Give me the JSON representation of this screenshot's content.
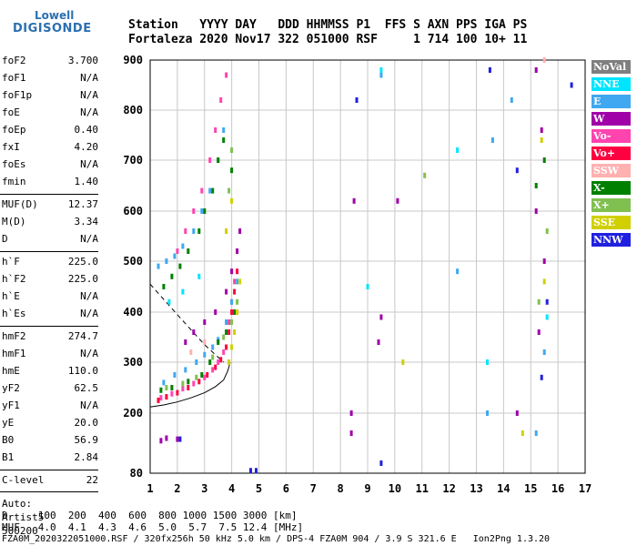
{
  "logo": {
    "line1": "Lowell",
    "line2": "DIGISONDE"
  },
  "header": {
    "line1": "Station   YYYY DAY   DDD HHMMSS P1  FFS S AXN PPS IGA PS",
    "line2": "Fortaleza 2020 Nov17 322 051000 RSF     1 714 100 10+ 11"
  },
  "params": [
    {
      "k": "foF2",
      "v": "3.700"
    },
    {
      "k": "foF1",
      "v": "N/A"
    },
    {
      "k": "foF1p",
      "v": "N/A"
    },
    {
      "k": "foE",
      "v": "N/A"
    },
    {
      "k": "foEp",
      "v": "0.40"
    },
    {
      "k": "fxI",
      "v": "4.20"
    },
    {
      "k": "foEs",
      "v": "N/A"
    },
    {
      "k": "fmin",
      "v": "1.40"
    },
    {
      "k": "MUF(D)",
      "v": "12.37"
    },
    {
      "k": "M(D)",
      "v": "3.34"
    },
    {
      "k": "D",
      "v": "N/A"
    },
    {
      "k": "h`F",
      "v": "225.0"
    },
    {
      "k": "h`F2",
      "v": "225.0"
    },
    {
      "k": "h`E",
      "v": "N/A"
    },
    {
      "k": "h`Es",
      "v": "N/A"
    },
    {
      "k": "hmF2",
      "v": "274.7"
    },
    {
      "k": "hmF1",
      "v": "N/A"
    },
    {
      "k": "hmE",
      "v": "110.0"
    },
    {
      "k": "yF2",
      "v": "62.5"
    },
    {
      "k": "yF1",
      "v": "N/A"
    },
    {
      "k": "yE",
      "v": "20.0"
    },
    {
      "k": "B0",
      "v": "56.9"
    },
    {
      "k": "B1",
      "v": "2.84"
    },
    {
      "k": "C-level",
      "v": "22"
    }
  ],
  "auto": {
    "l1": "Auto:",
    "l2": "Artist5",
    "l3": "500200"
  },
  "legend": [
    {
      "label": "NoVal",
      "color": "#7f7f7f"
    },
    {
      "label": "NNE",
      "color": "#00e5ff"
    },
    {
      "label": "E",
      "color": "#40a8f0"
    },
    {
      "label": "W",
      "color": "#a000a8"
    },
    {
      "label": "Vo-",
      "color": "#ff44b0"
    },
    {
      "label": "Vo+",
      "color": "#ff0040"
    },
    {
      "label": "SSW",
      "color": "#ffb0b0"
    },
    {
      "label": "X-",
      "color": "#008000"
    },
    {
      "label": "X+",
      "color": "#80c050"
    },
    {
      "label": "SSE",
      "color": "#d0d000"
    },
    {
      "label": "NNW",
      "color": "#2020e0"
    }
  ],
  "footer": {
    "l1": "D     100  200  400  600  800 1000 1500 3000 [km]",
    "l2": "MUF   4.0  4.1  4.3  4.6  5.0  5.7  7.5 12.4 [MHz]",
    "l3": "FZA0M_2020322051000.RSF / 320fx256h 50 kHz 5.0 km / DPS-4 FZA0M 904 / 3.9 S 321.6 E   Ion2Png 1.3.20"
  },
  "chart_data": {
    "type": "scatter",
    "xlim": [
      1,
      17
    ],
    "ylim": [
      80,
      900
    ],
    "xticks": [
      "1",
      "2",
      "3",
      "4",
      "5",
      "6",
      "7",
      "8",
      "9",
      "10",
      "11",
      "12",
      "13",
      "14",
      "15",
      "16",
      "17"
    ],
    "yticks": [
      "80",
      "200",
      "300",
      "400",
      "500",
      "600",
      "700",
      "800",
      "900"
    ],
    "grid": true,
    "series": [
      {
        "color": "#ff0040",
        "points": [
          [
            1.3,
            225
          ],
          [
            1.6,
            232
          ],
          [
            2.0,
            240
          ],
          [
            2.4,
            250
          ],
          [
            2.8,
            262
          ],
          [
            3.1,
            275
          ],
          [
            3.4,
            290
          ],
          [
            3.6,
            305
          ],
          [
            3.8,
            330
          ],
          [
            3.9,
            360
          ],
          [
            4.0,
            400
          ],
          [
            4.1,
            440
          ],
          [
            4.2,
            480
          ]
        ]
      },
      {
        "color": "#ff44b0",
        "points": [
          [
            1.4,
            230
          ],
          [
            1.8,
            238
          ],
          [
            2.2,
            248
          ],
          [
            2.6,
            258
          ],
          [
            3.0,
            270
          ],
          [
            3.3,
            285
          ],
          [
            3.5,
            300
          ],
          [
            3.7,
            320
          ],
          [
            3.9,
            380
          ],
          [
            4.0,
            420
          ],
          [
            4.1,
            460
          ],
          [
            2.0,
            520
          ],
          [
            2.3,
            560
          ],
          [
            2.6,
            600
          ],
          [
            2.9,
            640
          ],
          [
            3.2,
            700
          ],
          [
            3.4,
            760
          ],
          [
            3.6,
            820
          ],
          [
            3.8,
            870
          ]
        ]
      },
      {
        "color": "#40a8f0",
        "points": [
          [
            1.5,
            260
          ],
          [
            1.9,
            275
          ],
          [
            2.3,
            285
          ],
          [
            2.7,
            300
          ],
          [
            3.0,
            315
          ],
          [
            3.3,
            330
          ],
          [
            3.5,
            345
          ],
          [
            3.8,
            380
          ],
          [
            4.0,
            420
          ],
          [
            4.2,
            460
          ],
          [
            1.3,
            490
          ],
          [
            1.6,
            500
          ],
          [
            1.9,
            510
          ],
          [
            2.2,
            530
          ],
          [
            2.6,
            560
          ],
          [
            2.9,
            600
          ],
          [
            3.2,
            640
          ],
          [
            3.5,
            700
          ],
          [
            3.7,
            760
          ],
          [
            13.6,
            740
          ],
          [
            14.3,
            820
          ],
          [
            9.5,
            870
          ],
          [
            12.3,
            480
          ],
          [
            13.4,
            200
          ],
          [
            15.2,
            160
          ],
          [
            15.5,
            320
          ]
        ]
      },
      {
        "color": "#008000",
        "points": [
          [
            1.4,
            245
          ],
          [
            1.8,
            250
          ],
          [
            2.4,
            262
          ],
          [
            2.9,
            275
          ],
          [
            3.2,
            300
          ],
          [
            3.5,
            340
          ],
          [
            3.8,
            360
          ],
          [
            4.1,
            400
          ],
          [
            1.5,
            450
          ],
          [
            1.8,
            470
          ],
          [
            2.1,
            490
          ],
          [
            2.4,
            520
          ],
          [
            2.8,
            560
          ],
          [
            3.0,
            600
          ],
          [
            3.3,
            640
          ],
          [
            3.5,
            700
          ],
          [
            3.7,
            740
          ],
          [
            4.0,
            680
          ],
          [
            15.2,
            650
          ],
          [
            15.5,
            700
          ]
        ]
      },
      {
        "color": "#80c050",
        "points": [
          [
            1.6,
            250
          ],
          [
            2.2,
            258
          ],
          [
            2.7,
            270
          ],
          [
            3.3,
            310
          ],
          [
            3.7,
            350
          ],
          [
            4.0,
            380
          ],
          [
            4.2,
            420
          ],
          [
            3.9,
            640
          ],
          [
            4.0,
            720
          ],
          [
            11.1,
            670
          ],
          [
            15.3,
            420
          ],
          [
            15.6,
            560
          ]
        ]
      },
      {
        "color": "#a000a8",
        "points": [
          [
            1.4,
            145
          ],
          [
            1.6,
            150
          ],
          [
            2.0,
            148
          ],
          [
            2.3,
            340
          ],
          [
            2.6,
            360
          ],
          [
            3.0,
            380
          ],
          [
            3.4,
            400
          ],
          [
            3.8,
            440
          ],
          [
            4.0,
            480
          ],
          [
            4.2,
            520
          ],
          [
            4.3,
            560
          ],
          [
            8.4,
            200
          ],
          [
            8.4,
            160
          ],
          [
            8.5,
            620
          ],
          [
            9.4,
            340
          ],
          [
            9.5,
            390
          ],
          [
            10.1,
            620
          ],
          [
            15.2,
            880
          ],
          [
            15.4,
            760
          ],
          [
            15.2,
            600
          ],
          [
            15.5,
            500
          ],
          [
            15.3,
            360
          ],
          [
            14.5,
            200
          ]
        ]
      },
      {
        "color": "#d0d000",
        "points": [
          [
            3.9,
            300
          ],
          [
            4.0,
            330
          ],
          [
            4.1,
            360
          ],
          [
            4.2,
            400
          ],
          [
            4.3,
            460
          ],
          [
            3.8,
            560
          ],
          [
            4.0,
            620
          ],
          [
            10.3,
            300
          ],
          [
            15.4,
            740
          ],
          [
            15.5,
            460
          ],
          [
            14.7,
            160
          ]
        ]
      },
      {
        "color": "#2020e0",
        "points": [
          [
            2.1,
            148
          ],
          [
            4.7,
            85
          ],
          [
            4.9,
            85
          ],
          [
            8.6,
            820
          ],
          [
            9.5,
            100
          ],
          [
            13.5,
            880
          ],
          [
            14.5,
            680
          ],
          [
            16.5,
            850
          ],
          [
            15.6,
            420
          ],
          [
            15.4,
            270
          ]
        ]
      },
      {
        "color": "#00e5ff",
        "points": [
          [
            1.7,
            420
          ],
          [
            2.2,
            440
          ],
          [
            2.8,
            470
          ],
          [
            9.0,
            450
          ],
          [
            9.5,
            880
          ],
          [
            12.3,
            720
          ],
          [
            13.4,
            300
          ],
          [
            15.6,
            390
          ]
        ]
      },
      {
        "color": "#ffb0b0",
        "points": [
          [
            2.5,
            320
          ],
          [
            3.0,
            340
          ],
          [
            15.5,
            900
          ]
        ]
      }
    ],
    "curves": [
      {
        "style": "solid",
        "points": [
          [
            1.0,
            212
          ],
          [
            1.5,
            216
          ],
          [
            2.0,
            222
          ],
          [
            2.5,
            230
          ],
          [
            3.0,
            240
          ],
          [
            3.4,
            252
          ],
          [
            3.7,
            265
          ],
          [
            3.85,
            282
          ],
          [
            3.95,
            300
          ]
        ]
      },
      {
        "style": "dashed",
        "points": [
          [
            1.0,
            455
          ],
          [
            1.5,
            425
          ],
          [
            2.0,
            395
          ],
          [
            2.5,
            365
          ],
          [
            3.0,
            335
          ],
          [
            3.4,
            315
          ],
          [
            3.7,
            300
          ]
        ]
      }
    ]
  }
}
